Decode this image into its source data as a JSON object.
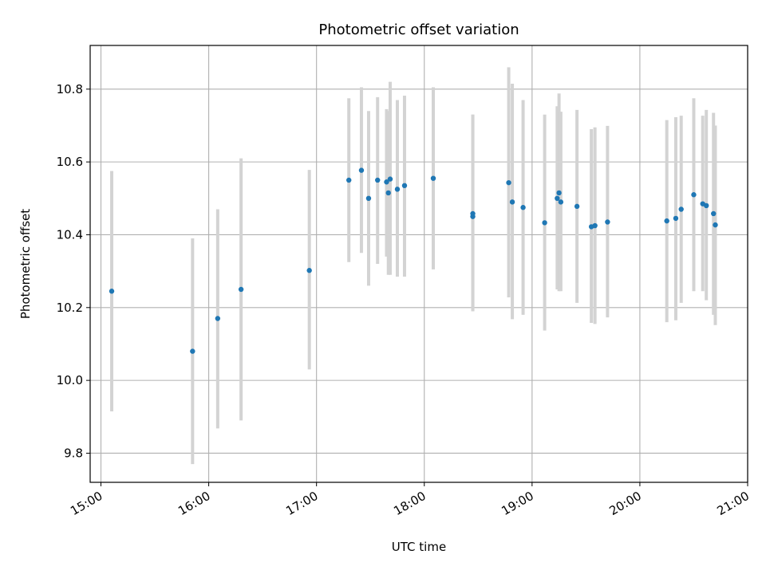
{
  "chart_data": {
    "type": "scatter",
    "title": "Photometric offset variation",
    "xlabel": "UTC time",
    "ylabel": "Photometric offset",
    "xlim": [
      "14:54",
      "21:00"
    ],
    "ylim": [
      9.72,
      10.92
    ],
    "grid": true,
    "x_ticks": [
      "15:00",
      "16:00",
      "17:00",
      "18:00",
      "19:00",
      "20:00",
      "21:00"
    ],
    "y_ticks": [
      9.8,
      10.0,
      10.2,
      10.4,
      10.6,
      10.8
    ],
    "y_tick_labels": [
      "9.8",
      "10.0",
      "10.2",
      "10.4",
      "10.6",
      "10.8"
    ],
    "colors": {
      "points": "#1f77b4",
      "error_bars": "#d3d3d3",
      "grid": "#b0b0b0"
    },
    "points": [
      {
        "time": "15:06",
        "y": 10.245,
        "low": 9.915,
        "high": 10.575
      },
      {
        "time": "15:51",
        "y": 10.08,
        "low": 9.77,
        "high": 10.39
      },
      {
        "time": "16:05",
        "y": 10.17,
        "low": 9.868,
        "high": 10.47
      },
      {
        "time": "16:18",
        "y": 10.25,
        "low": 9.89,
        "high": 10.61
      },
      {
        "time": "16:56",
        "y": 10.302,
        "low": 10.03,
        "high": 10.578
      },
      {
        "time": "17:18",
        "y": 10.55,
        "low": 10.325,
        "high": 10.775
      },
      {
        "time": "17:25",
        "y": 10.577,
        "low": 10.35,
        "high": 10.805
      },
      {
        "time": "17:29",
        "y": 10.5,
        "low": 10.26,
        "high": 10.74
      },
      {
        "time": "17:34",
        "y": 10.55,
        "low": 10.32,
        "high": 10.778
      },
      {
        "time": "17:39",
        "y": 10.545,
        "low": 10.34,
        "high": 10.745
      },
      {
        "time": "17:40",
        "y": 10.515,
        "low": 10.29,
        "high": 10.74
      },
      {
        "time": "17:41",
        "y": 10.553,
        "low": 10.29,
        "high": 10.82
      },
      {
        "time": "17:45",
        "y": 10.525,
        "low": 10.285,
        "high": 10.77
      },
      {
        "time": "17:49",
        "y": 10.535,
        "low": 10.285,
        "high": 10.782
      },
      {
        "time": "18:05",
        "y": 10.555,
        "low": 10.305,
        "high": 10.805
      },
      {
        "time": "18:27",
        "y": 10.45,
        "low": 10.19,
        "high": 10.73
      },
      {
        "time": "18:27",
        "y": 10.458,
        "low": 10.19,
        "high": 10.73
      },
      {
        "time": "18:47",
        "y": 10.543,
        "low": 10.228,
        "high": 10.86
      },
      {
        "time": "18:49",
        "y": 10.49,
        "low": 10.168,
        "high": 10.815
      },
      {
        "time": "18:55",
        "y": 10.475,
        "low": 10.18,
        "high": 10.77
      },
      {
        "time": "19:07",
        "y": 10.433,
        "low": 10.137,
        "high": 10.73
      },
      {
        "time": "19:14",
        "y": 10.5,
        "low": 10.25,
        "high": 10.753
      },
      {
        "time": "19:15",
        "y": 10.515,
        "low": 10.245,
        "high": 10.788
      },
      {
        "time": "19:16",
        "y": 10.49,
        "low": 10.245,
        "high": 10.738
      },
      {
        "time": "19:25",
        "y": 10.478,
        "low": 10.213,
        "high": 10.743
      },
      {
        "time": "19:33",
        "y": 10.422,
        "low": 10.158,
        "high": 10.69
      },
      {
        "time": "19:35",
        "y": 10.425,
        "low": 10.155,
        "high": 10.695
      },
      {
        "time": "19:42",
        "y": 10.435,
        "low": 10.173,
        "high": 10.699
      },
      {
        "time": "20:15",
        "y": 10.438,
        "low": 10.16,
        "high": 10.715
      },
      {
        "time": "20:20",
        "y": 10.445,
        "low": 10.165,
        "high": 10.723
      },
      {
        "time": "20:23",
        "y": 10.47,
        "low": 10.213,
        "high": 10.727
      },
      {
        "time": "20:30",
        "y": 10.51,
        "low": 10.245,
        "high": 10.775
      },
      {
        "time": "20:35",
        "y": 10.485,
        "low": 10.245,
        "high": 10.727
      },
      {
        "time": "20:37",
        "y": 10.48,
        "low": 10.22,
        "high": 10.743
      },
      {
        "time": "20:41",
        "y": 10.458,
        "low": 10.18,
        "high": 10.735
      },
      {
        "time": "20:42",
        "y": 10.427,
        "low": 10.152,
        "high": 10.7
      }
    ]
  }
}
